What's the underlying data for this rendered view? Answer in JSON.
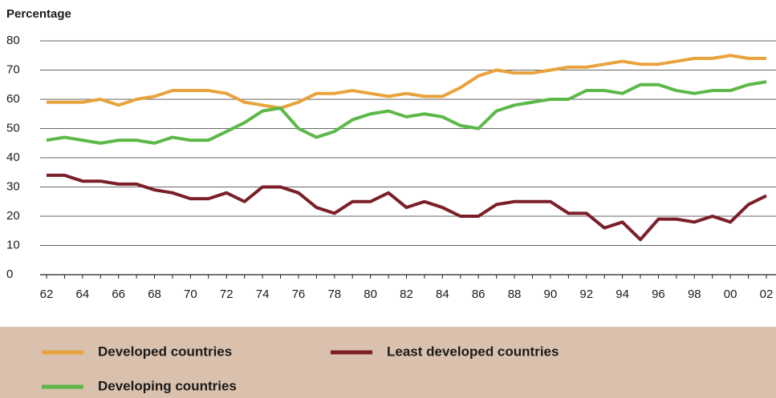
{
  "chart_data": {
    "type": "line",
    "y_label": "Percentage",
    "categories": [
      "62",
      null,
      "64",
      null,
      "66",
      null,
      "68",
      null,
      "70",
      null,
      "72",
      null,
      "74",
      null,
      "76",
      null,
      "78",
      null,
      "80",
      null,
      "82",
      null,
      "84",
      null,
      "86",
      null,
      "88",
      null,
      "90",
      null,
      "92",
      null,
      "94",
      null,
      "96",
      null,
      "98",
      null,
      "00",
      null,
      "02"
    ],
    "series": [
      {
        "name": "Developed countries",
        "color": "#e8a33d",
        "values": [
          59,
          59,
          59,
          60,
          58,
          60,
          61,
          63,
          63,
          63,
          62,
          59,
          58,
          57,
          59,
          62,
          62,
          63,
          62,
          61,
          62,
          61,
          61,
          64,
          68,
          70,
          69,
          69,
          70,
          71,
          71,
          72,
          73,
          72,
          72,
          73,
          74,
          74,
          75,
          74,
          74
        ]
      },
      {
        "name": "Developing countries",
        "color": "#5cb848",
        "values": [
          46,
          47,
          46,
          45,
          46,
          46,
          45,
          47,
          46,
          46,
          49,
          52,
          56,
          57,
          50,
          47,
          49,
          53,
          55,
          56,
          54,
          55,
          54,
          51,
          50,
          56,
          58,
          59,
          60,
          60,
          63,
          63,
          62,
          65,
          65,
          63,
          62,
          63,
          63,
          65,
          66
        ]
      },
      {
        "name": "Least developed countries",
        "color": "#7a1f28",
        "values": [
          34,
          34,
          32,
          32,
          31,
          31,
          29,
          28,
          26,
          26,
          28,
          25,
          30,
          30,
          28,
          23,
          21,
          25,
          25,
          28,
          23,
          25,
          23,
          20,
          20,
          24,
          25,
          25,
          25,
          21,
          21,
          16,
          18,
          12,
          19,
          19,
          18,
          20,
          18,
          24,
          27
        ]
      }
    ],
    "ylim": [
      0,
      80
    ],
    "yticks": [
      0,
      10,
      20,
      30,
      40,
      50,
      60,
      70,
      80
    ],
    "grid": true
  }
}
